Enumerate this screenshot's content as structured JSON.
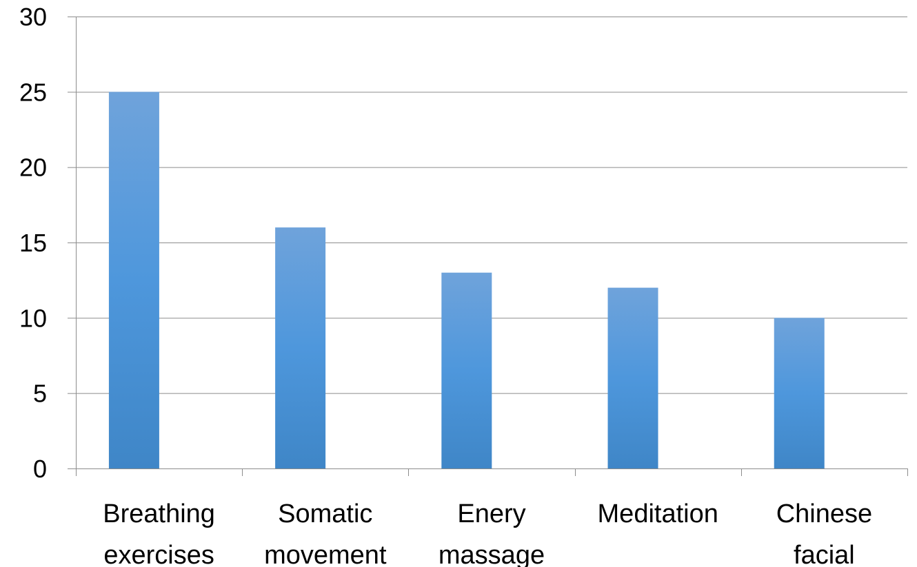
{
  "chart_data": {
    "type": "bar",
    "categories": [
      [
        "Breathing",
        "exercises"
      ],
      [
        "Somatic",
        "movement"
      ],
      [
        "Enery",
        "massage"
      ],
      [
        "Meditation"
      ],
      [
        "Chinese",
        "facial"
      ]
    ],
    "values": [
      25,
      16,
      13,
      12,
      10
    ],
    "ylim": [
      0,
      30
    ],
    "yticks": [
      "0",
      "5",
      "10",
      "15",
      "20",
      "25",
      "30"
    ],
    "grid": true,
    "legend": "none",
    "colors": {
      "bar_top": "#6fa3db",
      "bar_mid": "#4e97dc",
      "bar_bottom": "#3f86c7",
      "grid": "#8c8c8c",
      "axis": "#8c8c8c"
    }
  }
}
